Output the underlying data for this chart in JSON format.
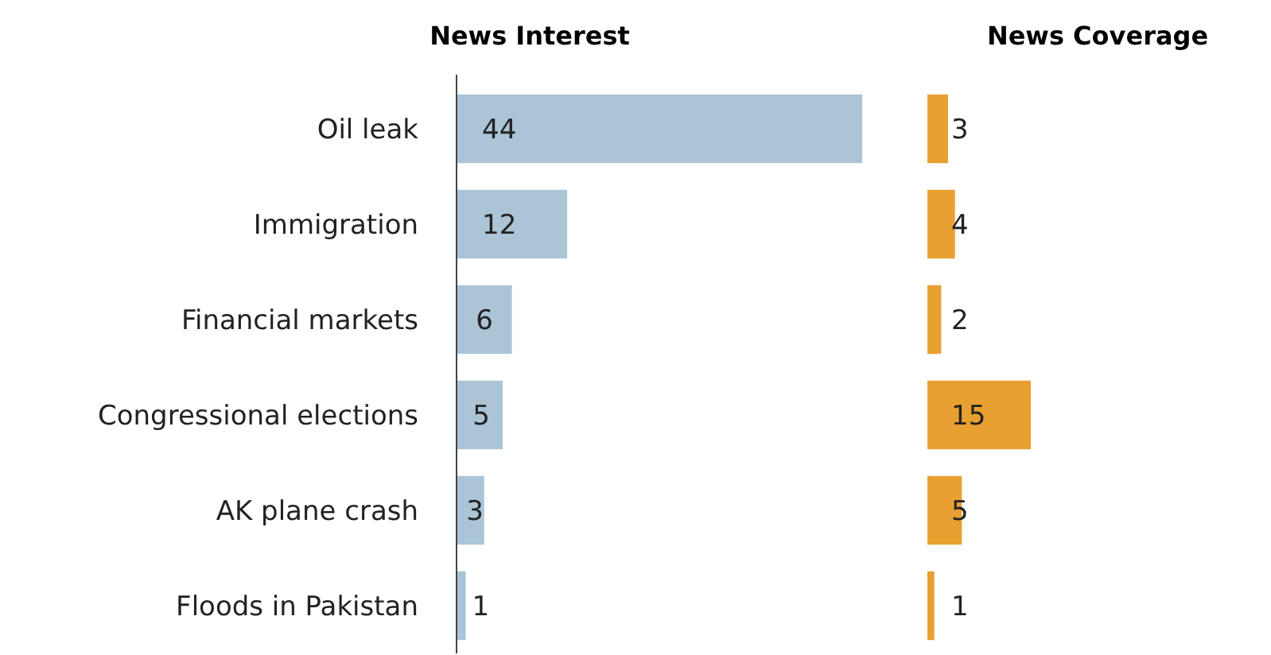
{
  "chart_data": [
    {
      "type": "bar",
      "title": "News Interest",
      "orientation": "horizontal",
      "categories": [
        "Oil leak",
        "Immigration",
        "Financial markets",
        "Congressional elections",
        "AK plane crash",
        "Floods in Pakistan"
      ],
      "values": [
        44,
        12,
        6,
        5,
        3,
        1
      ],
      "color": "#abc4d6",
      "data_labels": true,
      "tick_labels": "y"
    },
    {
      "type": "bar",
      "title": "News Coverage",
      "orientation": "horizontal",
      "categories": [
        null,
        null,
        null,
        null,
        null,
        null
      ],
      "values": [
        3,
        4,
        2,
        15,
        5,
        1
      ],
      "color": "#e8a030",
      "data_labels": true,
      "tick_labels": false
    }
  ]
}
